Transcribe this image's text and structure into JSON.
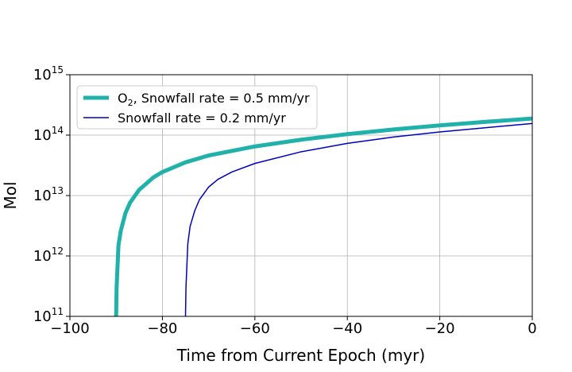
{
  "chart_data": {
    "type": "line",
    "xlabel": "Time from Current Epoch (myr)",
    "ylabel": "Mol",
    "xlim": [
      -100,
      0
    ],
    "ylim": [
      100000000000.0,
      1000000000000000.0
    ],
    "yscale": "log",
    "grid": true,
    "legend_position": "upper-left",
    "x_ticks": [
      -100,
      -80,
      -60,
      -40,
      -20,
      0
    ],
    "x_tick_labels": [
      "−100",
      "−80",
      "−60",
      "−40",
      "−20",
      "0"
    ],
    "y_ticks": [
      100000000000.0,
      1000000000000.0,
      10000000000000.0,
      100000000000000.0,
      1000000000000000.0
    ],
    "y_tick_base": "10",
    "y_tick_exponents": [
      "11",
      "12",
      "13",
      "14",
      "15"
    ],
    "series": [
      {
        "name": "O2, Snowfall rate = 0.5 mm/yr",
        "legend_main": "O",
        "legend_sub": "2",
        "legend_rest": ", Snowfall rate = 0.5 mm/yr",
        "color": "#20b2aa",
        "line_width": 5,
        "onset_x": -90,
        "x": [
          -90,
          -89.9,
          -89.5,
          -89,
          -88,
          -87,
          -85,
          -82,
          -80,
          -75,
          -70,
          -60,
          -50,
          -40,
          -30,
          -20,
          -10,
          0
        ],
        "y": [
          100000000000.0,
          300000000000.0,
          1500000000000.0,
          2600000000000.0,
          5100000000000.0,
          7600000000000.0,
          12500000000000.0,
          19800000000000.0,
          24500000000000.0,
          35500000000000.0,
          46000000000000.0,
          65000000000000.0,
          84000000000000.0,
          104000000000000.0,
          124000000000000.0,
          145000000000000.0,
          166000000000000.0,
          188000000000000.0
        ]
      },
      {
        "name": "Snowfall rate = 0.2 mm/yr",
        "legend_main": "Snowfall rate = 0.2 mm/yr",
        "legend_sub": "",
        "legend_rest": "",
        "color": "#0000bf",
        "line_width": 1.5,
        "onset_x": -75,
        "x": [
          -75,
          -74.9,
          -74.5,
          -74,
          -73,
          -72,
          -70,
          -68,
          -65,
          -60,
          -50,
          -40,
          -30,
          -20,
          -10,
          0
        ],
        "y": [
          100000000000.0,
          300000000000.0,
          1600000000000.0,
          3100000000000.0,
          5600000000000.0,
          8500000000000.0,
          13800000000000.0,
          18500000000000.0,
          24500000000000.0,
          34000000000000.0,
          53000000000000.0,
          73000000000000.0,
          93000000000000.0,
          113000000000000.0,
          133000000000000.0,
          156000000000000.0
        ]
      }
    ]
  }
}
